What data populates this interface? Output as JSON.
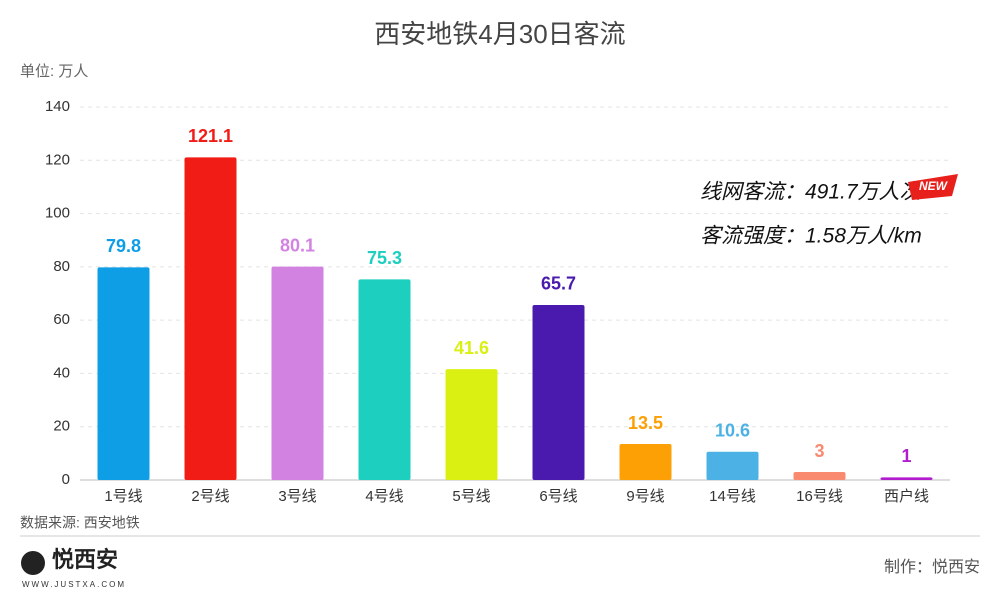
{
  "chart_data": {
    "type": "bar",
    "title": "西安地铁4月30日客流",
    "y_unit": "单位: 万人",
    "categories": [
      "1号线",
      "2号线",
      "3号线",
      "4号线",
      "5号线",
      "6号线",
      "9号线",
      "14号线",
      "16号线",
      "西户线"
    ],
    "values": [
      79.8,
      121.1,
      80.1,
      75.3,
      41.6,
      65.7,
      13.5,
      10.6,
      3,
      1
    ],
    "colors": [
      "#0e9ee6",
      "#f21c17",
      "#d282e0",
      "#1ccfbe",
      "#d9f012",
      "#4a1aaf",
      "#fca005",
      "#4cb1e4",
      "#f98a70",
      "#b21ccf"
    ],
    "ylim": [
      0,
      140
    ],
    "yticks": [
      0,
      20,
      40,
      60,
      80,
      100,
      120,
      140
    ],
    "grid": true,
    "annotations": [
      "线网客流：491.7万人次",
      "客流强度：1.58万人/km"
    ],
    "badge": "NEW",
    "source": "数据来源: 西安地铁",
    "credit": "制作：悦西安",
    "brand": {
      "name": "悦西安",
      "url": "WWW.JUSTXA.COM"
    }
  }
}
